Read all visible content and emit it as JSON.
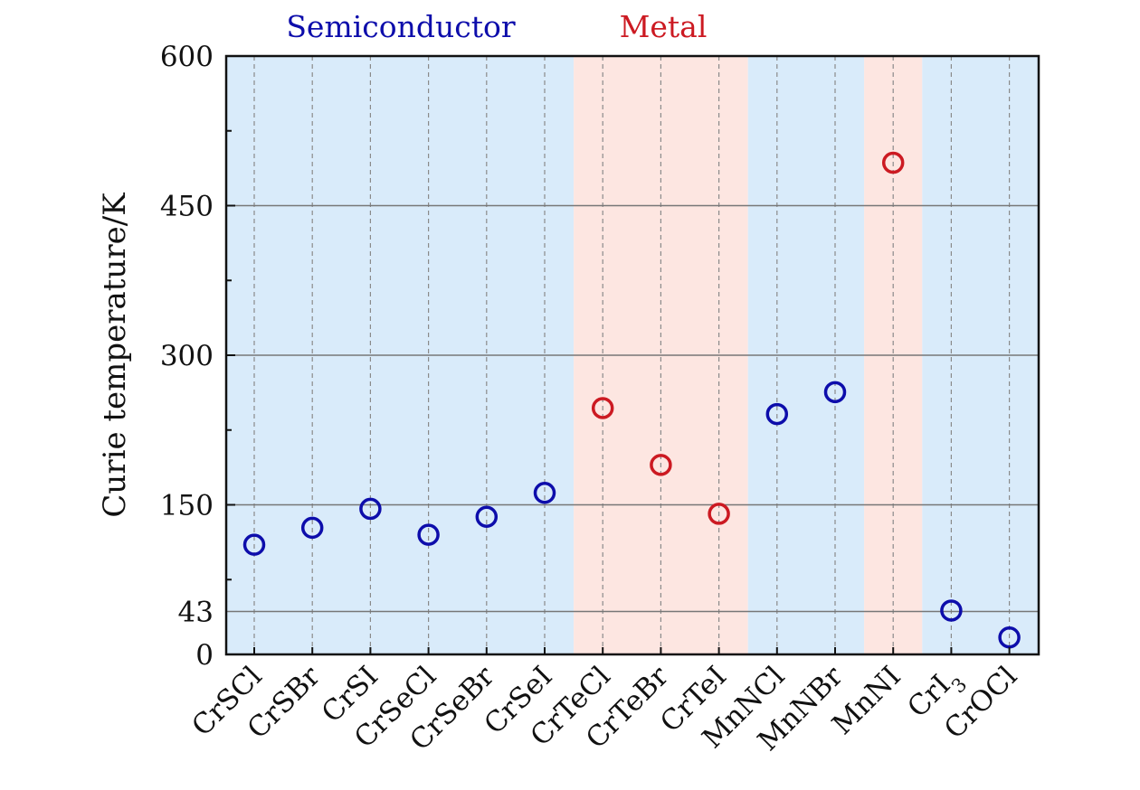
{
  "chart_data": {
    "type": "scatter",
    "title": "",
    "xlabel": "",
    "ylabel": "Curie temperature/K",
    "ylim": [
      0,
      600
    ],
    "yticks": [
      0,
      43,
      150,
      300,
      450,
      600
    ],
    "gridlines_y": [
      43,
      150,
      300,
      450
    ],
    "categories": [
      "CrSCl",
      "CrSBr",
      "CrSI",
      "CrSeCl",
      "CrSeBr",
      "CrSeI",
      "CrTeCl",
      "CrTeBr",
      "CrTeI",
      "MnNCl",
      "MnNBr",
      "MnNI",
      "CrI3",
      "CrOCl"
    ],
    "category_labels": [
      {
        "text": "CrSCl",
        "sub": ""
      },
      {
        "text": "CrSBr",
        "sub": ""
      },
      {
        "text": "CrSI",
        "sub": ""
      },
      {
        "text": "CrSeCl",
        "sub": ""
      },
      {
        "text": "CrSeBr",
        "sub": ""
      },
      {
        "text": "CrSeI",
        "sub": ""
      },
      {
        "text": "CrTeCl",
        "sub": ""
      },
      {
        "text": "CrTeBr",
        "sub": ""
      },
      {
        "text": "CrTeI",
        "sub": ""
      },
      {
        "text": "MnNCl",
        "sub": ""
      },
      {
        "text": "MnNBr",
        "sub": ""
      },
      {
        "text": "MnNI",
        "sub": ""
      },
      {
        "text": "CrI",
        "sub": "3"
      },
      {
        "text": "CrOCl",
        "sub": ""
      }
    ],
    "values": [
      110,
      127,
      146,
      120,
      138,
      162,
      247,
      190,
      141,
      241,
      263,
      493,
      44,
      17
    ],
    "point_class": [
      "semiconductor",
      "semiconductor",
      "semiconductor",
      "semiconductor",
      "semiconductor",
      "semiconductor",
      "metal",
      "metal",
      "metal",
      "semiconductor",
      "semiconductor",
      "metal",
      "semiconductor",
      "semiconductor"
    ],
    "regions": [
      {
        "class": "semiconductor",
        "from": "CrSCl",
        "to": "CrSeI"
      },
      {
        "class": "metal",
        "from": "CrTeCl",
        "to": "CrTeI"
      },
      {
        "class": "semiconductor",
        "from": "MnNCl",
        "to": "MnNBr"
      },
      {
        "class": "metal",
        "from": "MnNI",
        "to": "MnNI"
      },
      {
        "class": "semiconductor",
        "from": "CrI3",
        "to": "CrOCl"
      }
    ],
    "region_labels": {
      "semiconductor": "Semiconductor",
      "metal": "Metal"
    },
    "colors": {
      "semiconductor": "#0d0dab",
      "metal": "#cc1a22",
      "semiconductor_bg": "#d9ebfa",
      "metal_bg": "#fde6e1",
      "grid": "#777777",
      "vgrid": "#8a8a8a"
    },
    "grid": true
  }
}
